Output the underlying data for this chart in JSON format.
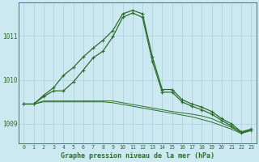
{
  "background_color": "#cce8f0",
  "plot_bg_color": "#cce8f0",
  "grid_color": "#aaccd8",
  "line_color": "#2d6e2d",
  "title": "Graphe pression niveau de la mer (hPa)",
  "ylim": [
    1008.55,
    1011.75
  ],
  "xlim": [
    -0.5,
    23.5
  ],
  "yticks": [
    1009,
    1010,
    1011
  ],
  "xticks": [
    0,
    1,
    2,
    3,
    4,
    5,
    6,
    7,
    8,
    9,
    10,
    11,
    12,
    13,
    14,
    15,
    16,
    17,
    18,
    19,
    20,
    21,
    22,
    23
  ],
  "series1_y": [
    1009.45,
    1009.45,
    1009.65,
    1009.82,
    1010.1,
    1010.28,
    1010.52,
    1010.72,
    1010.9,
    1011.12,
    1011.5,
    1011.58,
    1011.5,
    1010.52,
    1009.78,
    1009.78,
    1009.55,
    1009.45,
    1009.38,
    1009.28,
    1009.12,
    1009.0,
    1008.82,
    1008.88
  ],
  "series2_y": [
    1009.45,
    1009.45,
    1009.62,
    1009.75,
    1009.75,
    1009.95,
    1010.22,
    1010.5,
    1010.65,
    1010.98,
    1011.42,
    1011.52,
    1011.42,
    1010.42,
    1009.72,
    1009.72,
    1009.5,
    1009.4,
    1009.32,
    1009.22,
    1009.08,
    1008.95,
    1008.8,
    1008.85
  ],
  "series3_y": [
    1009.45,
    1009.45,
    1009.52,
    1009.52,
    1009.52,
    1009.52,
    1009.52,
    1009.52,
    1009.52,
    1009.52,
    1009.48,
    1009.44,
    1009.4,
    1009.36,
    1009.32,
    1009.28,
    1009.25,
    1009.22,
    1009.18,
    1009.12,
    1009.02,
    1008.92,
    1008.8,
    1008.88
  ],
  "series4_y": [
    1009.45,
    1009.45,
    1009.5,
    1009.5,
    1009.5,
    1009.5,
    1009.5,
    1009.5,
    1009.5,
    1009.48,
    1009.44,
    1009.4,
    1009.36,
    1009.32,
    1009.28,
    1009.24,
    1009.2,
    1009.16,
    1009.1,
    1009.04,
    1008.96,
    1008.88,
    1008.78,
    1008.85
  ]
}
